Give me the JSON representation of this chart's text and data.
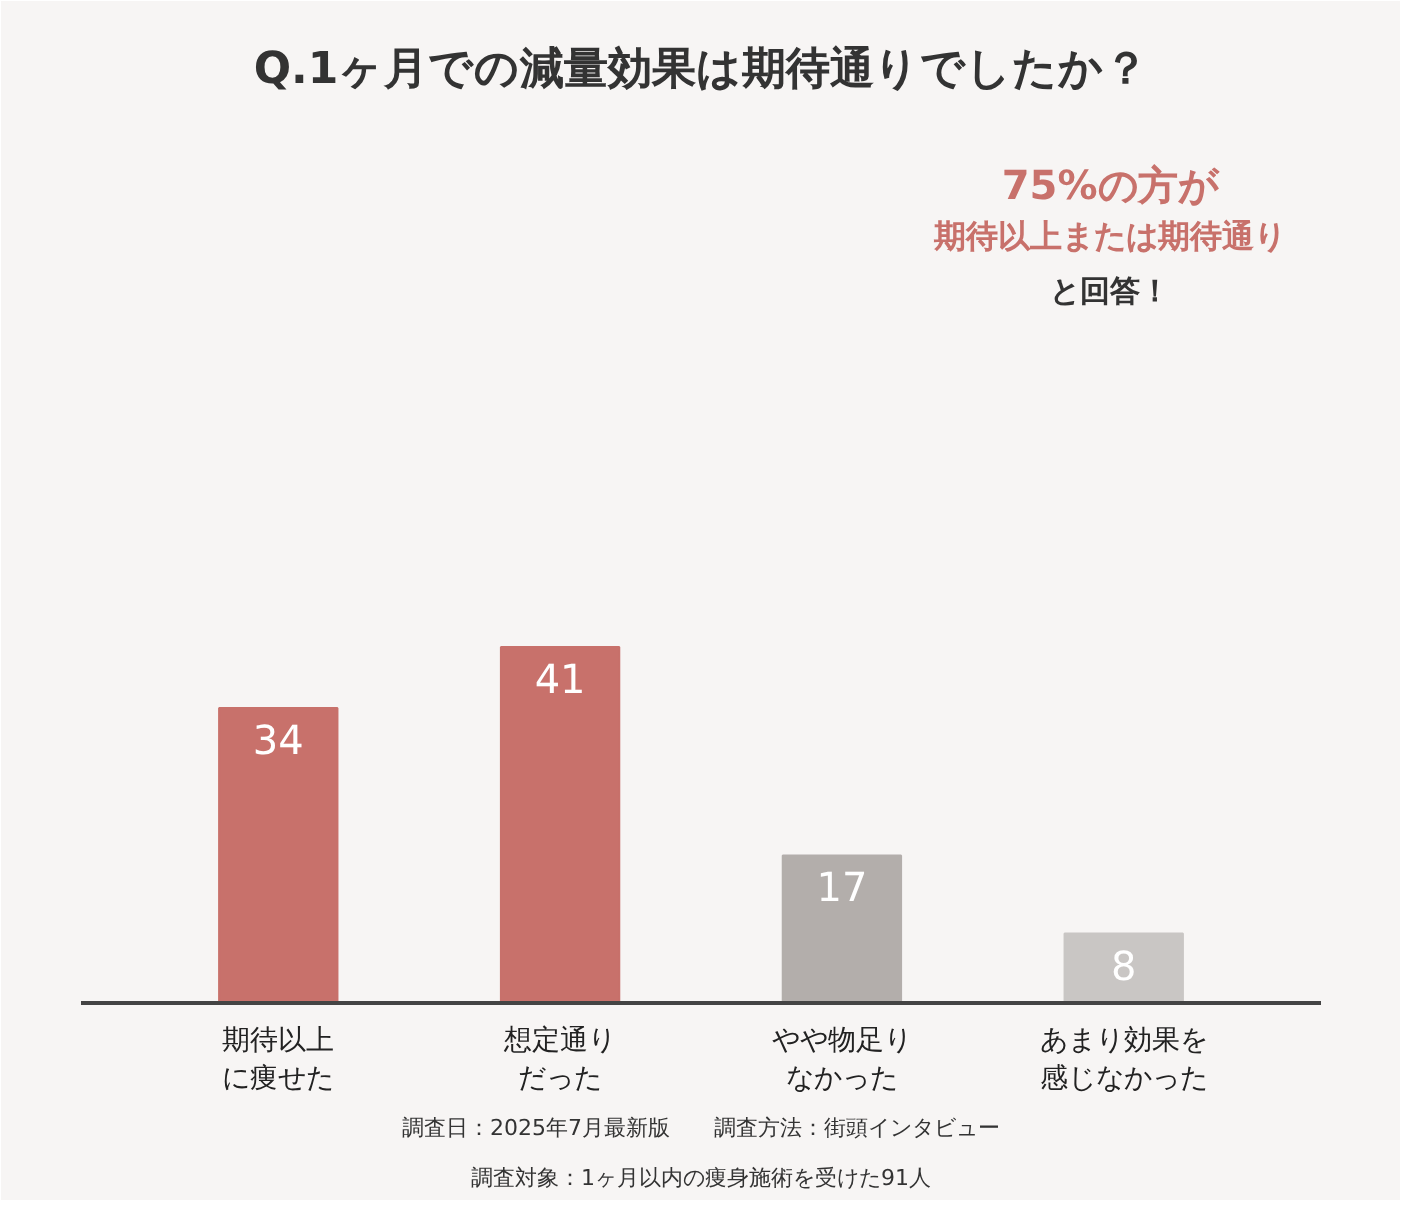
{
  "chart_data": {
    "type": "bar",
    "title": "Q.1ヶ月での減量効果は期待通りでしたか？",
    "categories": [
      "期待以上に痩せた",
      "想定通りだった",
      "やや物足りなかった",
      "あまり効果を感じなかった"
    ],
    "values": [
      34,
      41,
      17,
      8
    ],
    "colors": [
      "#c8716b",
      "#c8716b",
      "#b3aeab",
      "#c9c6c4"
    ],
    "ylim": [
      0,
      100
    ],
    "data_labels": true,
    "grid": false,
    "annotations": [
      "75%の方が",
      "期待以上または期待通り",
      "と回答！",
      "調査日：2025年7月最新版　　調査方法：街頭インタビュー",
      "調査対象：1ヶ月以内の痩身施術を受けた91人"
    ]
  }
}
